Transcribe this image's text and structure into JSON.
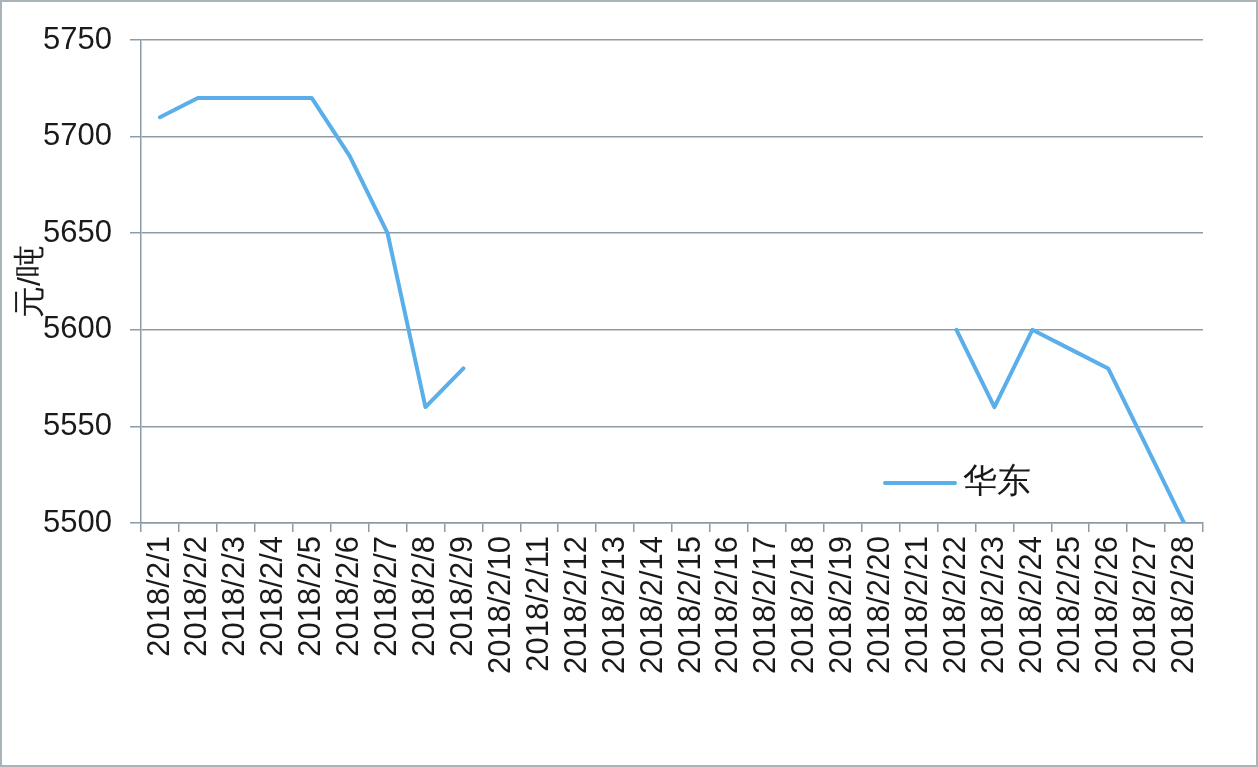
{
  "chart_data": {
    "type": "line",
    "ylabel": "元/吨",
    "categories": [
      "2018/2/1",
      "2018/2/2",
      "2018/2/3",
      "2018/2/4",
      "2018/2/5",
      "2018/2/6",
      "2018/2/7",
      "2018/2/8",
      "2018/2/9",
      "2018/2/10",
      "2018/2/11",
      "2018/2/12",
      "2018/2/13",
      "2018/2/14",
      "2018/2/15",
      "2018/2/16",
      "2018/2/17",
      "2018/2/18",
      "2018/2/19",
      "2018/2/20",
      "2018/2/21",
      "2018/2/22",
      "2018/2/23",
      "2018/2/24",
      "2018/2/25",
      "2018/2/26",
      "2018/2/27",
      "2018/2/28"
    ],
    "series": [
      {
        "name": "华东",
        "color": "#5aaeea",
        "values": [
          5710,
          5720,
          5720,
          5720,
          5720,
          5690,
          5650,
          5560,
          5580,
          null,
          null,
          null,
          null,
          null,
          null,
          null,
          null,
          null,
          null,
          null,
          null,
          5600,
          5560,
          5600,
          5590,
          5580,
          5540,
          5500
        ]
      }
    ],
    "ylim": [
      5500,
      5750
    ],
    "yticks": [
      5500,
      5550,
      5600,
      5650,
      5700,
      5750
    ],
    "grid": "y",
    "legend": "bottom right",
    "marker": "none"
  }
}
